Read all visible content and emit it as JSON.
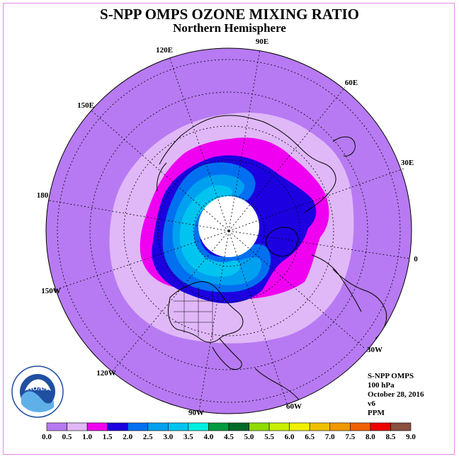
{
  "title": "S-NPP OMPS OZONE MIXING RATIO",
  "subtitle": "Northern Hemisphere",
  "longitude_labels": [
    "90E",
    "60E",
    "30E",
    "0",
    "30W",
    "60W",
    "90W",
    "120W",
    "150W",
    "180",
    "150E",
    "120E"
  ],
  "info": {
    "instrument": "S-NPP OMPS",
    "level": "100 hPa",
    "date": "October 28, 2016",
    "version": "v6",
    "units": "PPM"
  },
  "colorbar": {
    "labels": [
      "0.0",
      "0.5",
      "1.0",
      "1.5",
      "2.0",
      "2.5",
      "3.0",
      "3.5",
      "4.0",
      "4.5",
      "5.0",
      "5.5",
      "6.0",
      "6.5",
      "7.0",
      "7.5",
      "8.0",
      "8.5",
      "9.0"
    ],
    "colors": [
      "#b77af2",
      "#e0b8f8",
      "#f000f0",
      "#1c00e0",
      "#0070f0",
      "#00a0f0",
      "#00c4f0",
      "#00f0e0",
      "#009a40",
      "#006a28",
      "#90dc00",
      "#c8f000",
      "#f0f000",
      "#f0c000",
      "#f09800",
      "#f06000",
      "#f00000",
      "#8a5040"
    ]
  },
  "colors": {
    "background_disk": "#b77af2",
    "frame": "#e58ae5",
    "noaa_blue": "#1f4fa0"
  },
  "logo_text": "NOAA"
}
